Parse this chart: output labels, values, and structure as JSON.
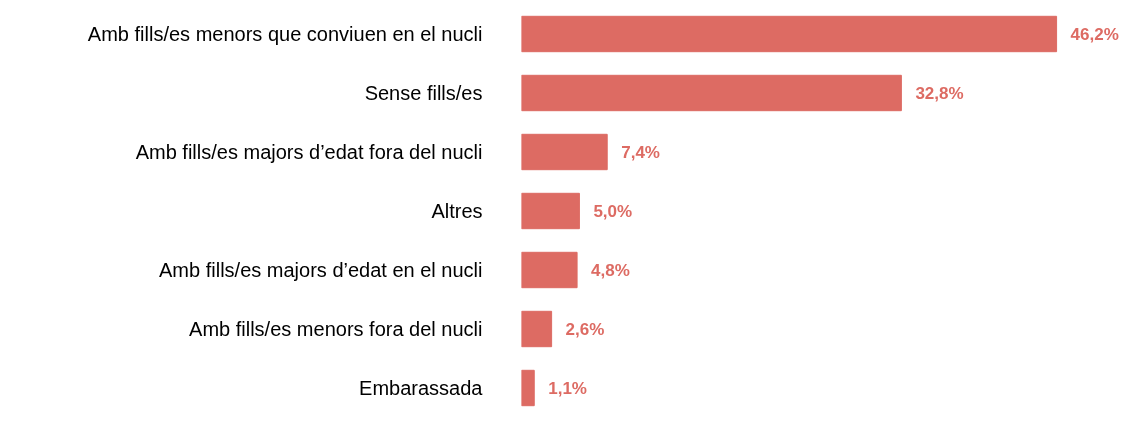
{
  "chart_data": {
    "type": "bar",
    "orientation": "horizontal",
    "categories": [
      "Amb fills/es menors que conviuen en el nucli",
      "Sense fills/es",
      "Amb fills/es majors d’edat fora del nucli",
      "Altres",
      "Amb fills/es majors d’edat en el nucli",
      "Amb fills/es menors fora del nucli",
      "Embarassada"
    ],
    "values": [
      46.2,
      32.8,
      7.4,
      5.0,
      4.8,
      2.6,
      1.1
    ],
    "value_labels": [
      "46,2%",
      "32,8%",
      "7,4%",
      "5,0%",
      "4,8%",
      "2,6%",
      "1,1%"
    ],
    "color": "#dd6b63",
    "grid": false
  }
}
